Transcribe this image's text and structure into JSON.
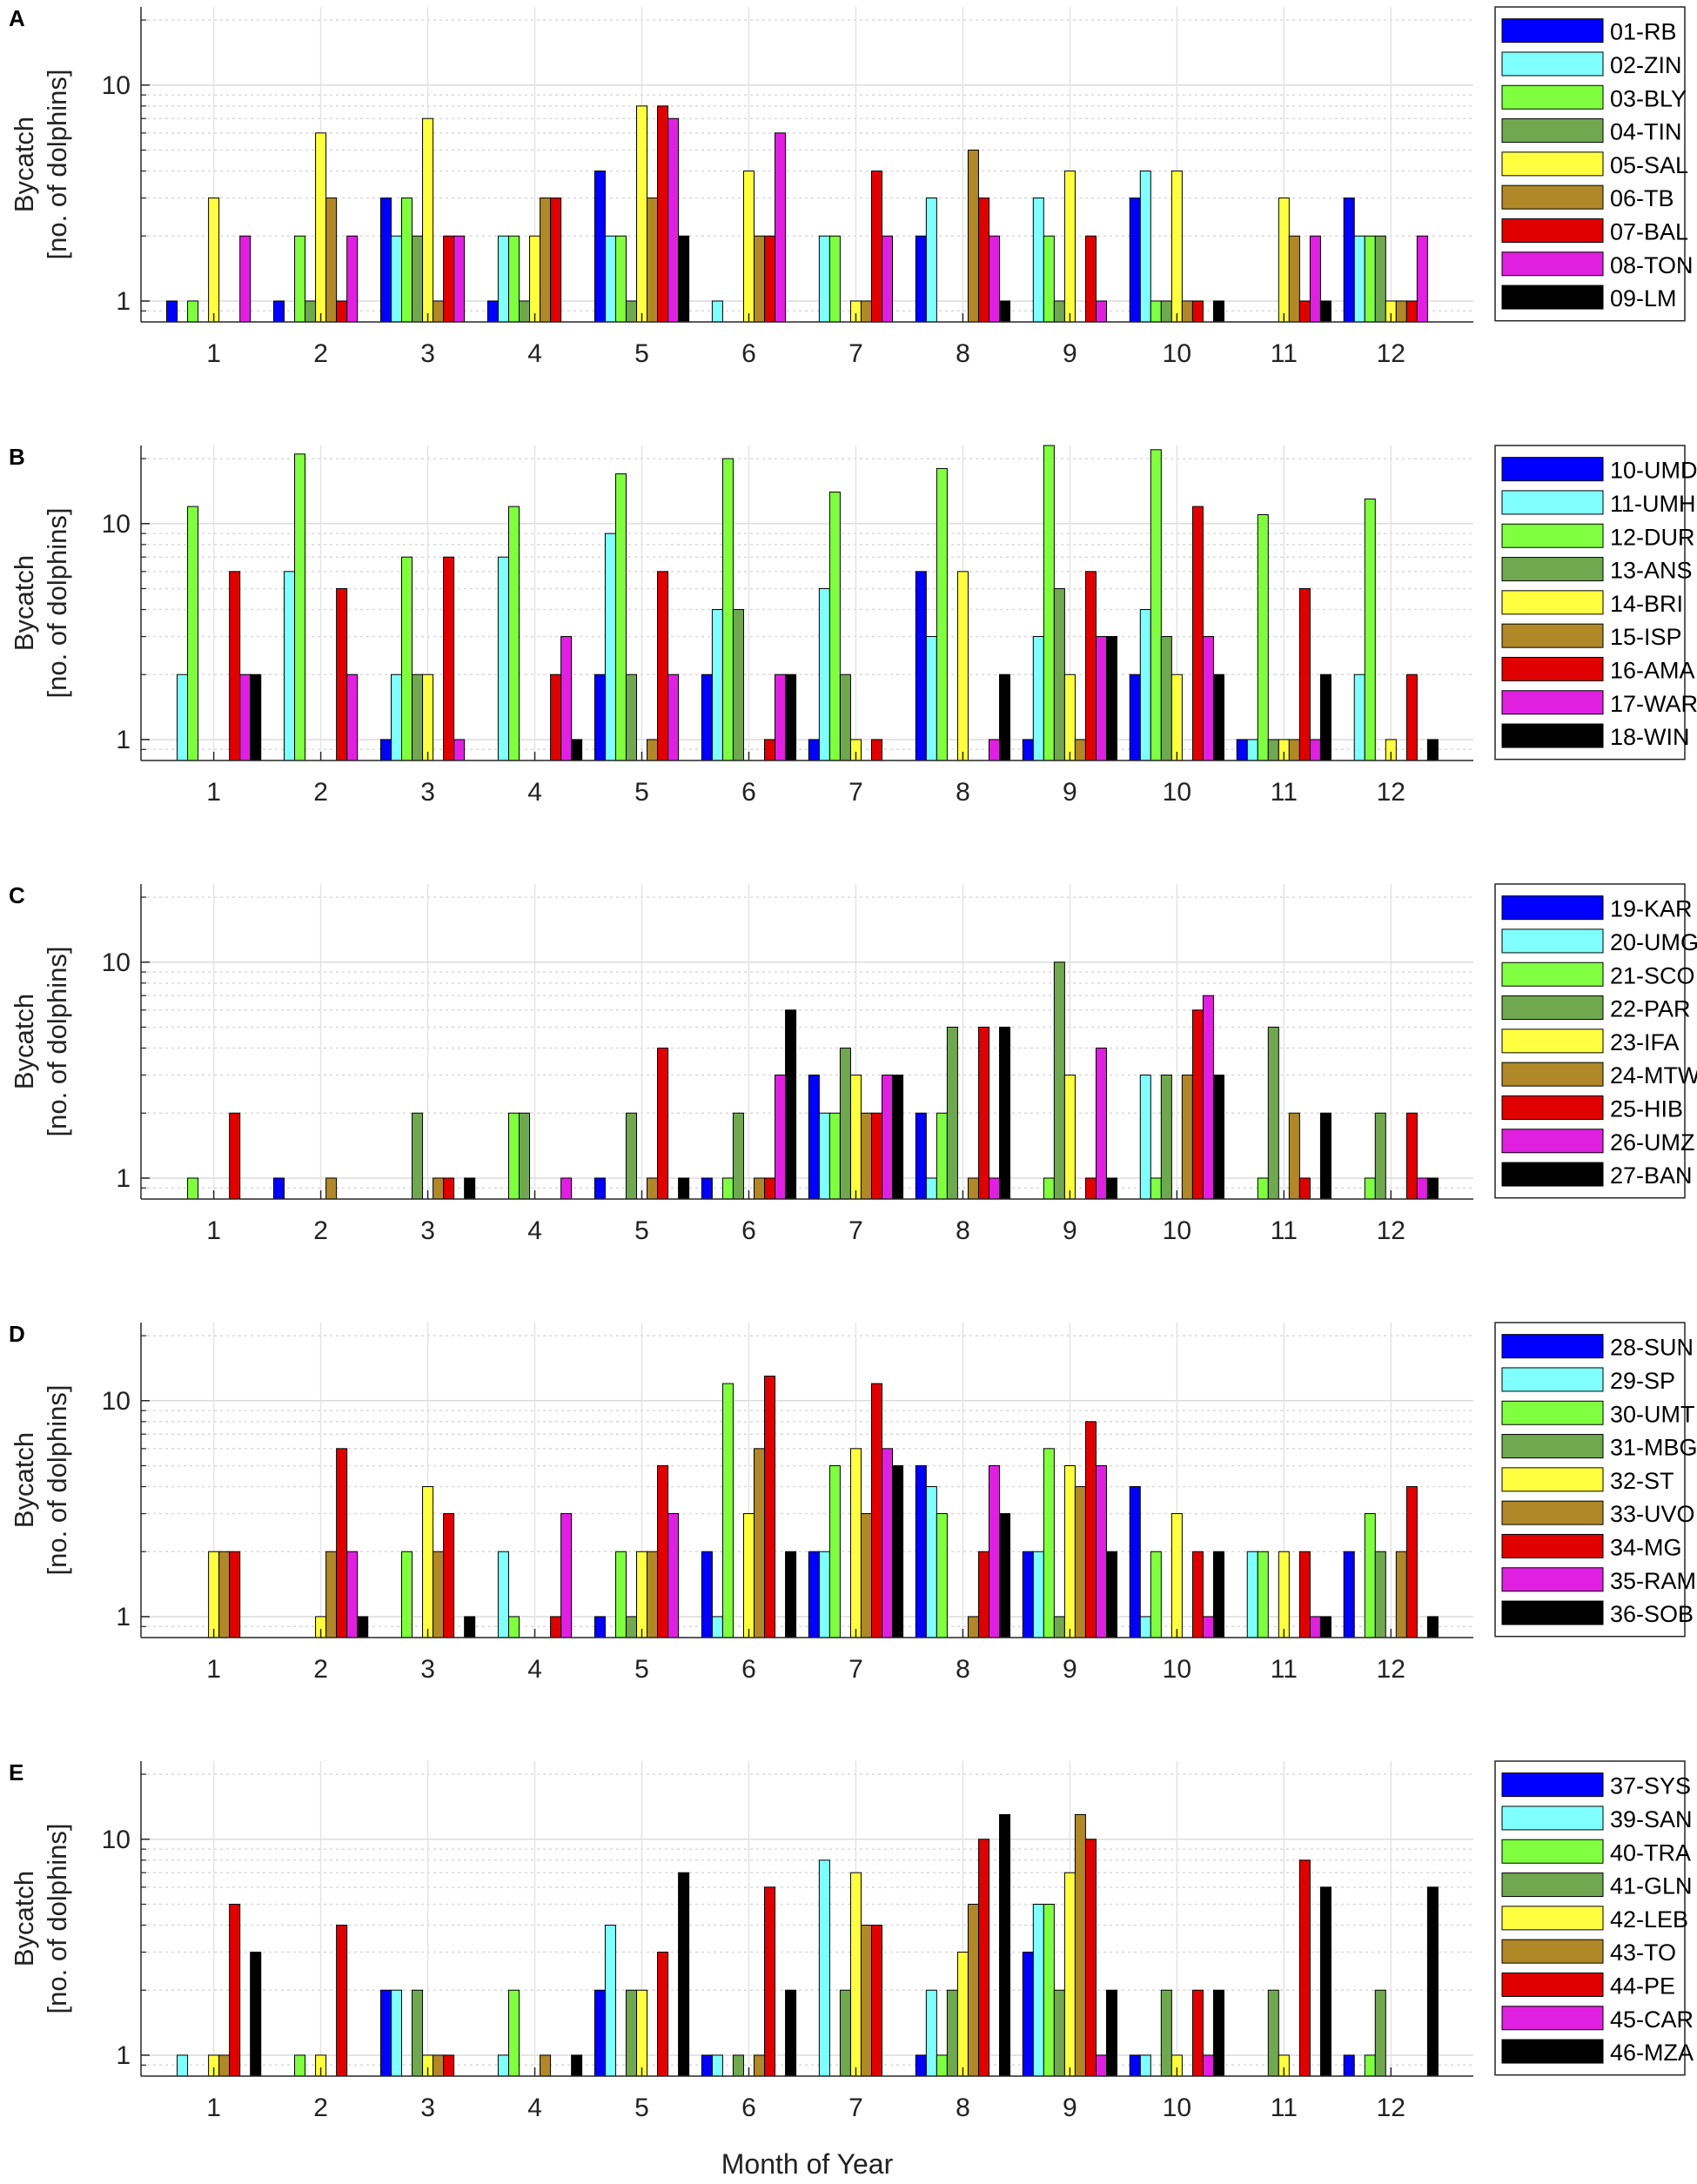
{
  "chart_data": [
    {
      "type": "bar",
      "panel": "A",
      "title": "",
      "xlabel": "",
      "ylabel": [
        "Bycatch",
        "[no. of dolphins]"
      ],
      "yscale": "log",
      "ylim": [
        0.8,
        23
      ],
      "yticks": [
        {
          "value": 1,
          "label": "1"
        },
        {
          "value": 10,
          "label": "10"
        }
      ],
      "categories": [
        "1",
        "2",
        "3",
        "4",
        "5",
        "6",
        "7",
        "8",
        "9",
        "10",
        "11",
        "12"
      ],
      "legend_position": "right",
      "series": [
        {
          "name": "01-RB",
          "color": "#0000ff",
          "values": [
            1,
            1,
            3,
            1,
            4,
            0,
            0,
            2,
            0,
            3,
            0,
            3
          ]
        },
        {
          "name": "02-ZIN",
          "color": "#80ffff",
          "values": [
            0,
            0,
            2,
            2,
            2,
            1,
            2,
            3,
            3,
            4,
            0,
            2
          ]
        },
        {
          "name": "03-BLY",
          "color": "#80ff40",
          "values": [
            1,
            2,
            3,
            2,
            2,
            0,
            2,
            0,
            2,
            1,
            0,
            2
          ]
        },
        {
          "name": "04-TIN",
          "color": "#70a850",
          "values": [
            0,
            1,
            2,
            1,
            1,
            0,
            0,
            0,
            1,
            1,
            0,
            2
          ]
        },
        {
          "name": "05-SAL",
          "color": "#ffff40",
          "values": [
            3,
            6,
            7,
            2,
            8,
            4,
            1,
            0,
            4,
            4,
            3,
            1
          ]
        },
        {
          "name": "06-TB",
          "color": "#b08828",
          "values": [
            0,
            3,
            1,
            3,
            3,
            2,
            1,
            5,
            0,
            1,
            2,
            1
          ]
        },
        {
          "name": "07-BAL",
          "color": "#e00000",
          "values": [
            0,
            1,
            2,
            3,
            8,
            2,
            4,
            3,
            2,
            1,
            1,
            1
          ]
        },
        {
          "name": "08-TON",
          "color": "#e020e0",
          "values": [
            2,
            2,
            2,
            0,
            7,
            6,
            2,
            2,
            1,
            0,
            2,
            2
          ]
        },
        {
          "name": "09-LM",
          "color": "#000000",
          "values": [
            0,
            0,
            0,
            0,
            2,
            0,
            0,
            1,
            0,
            1,
            1,
            0
          ]
        }
      ]
    },
    {
      "type": "bar",
      "panel": "B",
      "title": "",
      "xlabel": "",
      "ylabel": [
        "Bycatch",
        "[no. of dolphins]"
      ],
      "yscale": "log",
      "ylim": [
        0.8,
        23
      ],
      "yticks": [
        {
          "value": 1,
          "label": "1"
        },
        {
          "value": 10,
          "label": "10"
        }
      ],
      "categories": [
        "1",
        "2",
        "3",
        "4",
        "5",
        "6",
        "7",
        "8",
        "9",
        "10",
        "11",
        "12"
      ],
      "legend_position": "right",
      "series": [
        {
          "name": "10-UMD",
          "color": "#0000ff",
          "values": [
            0,
            0,
            1,
            0,
            2,
            2,
            1,
            6,
            1,
            2,
            1,
            0
          ]
        },
        {
          "name": "11-UMH",
          "color": "#80ffff",
          "values": [
            2,
            6,
            2,
            7,
            9,
            4,
            5,
            3,
            3,
            4,
            1,
            2
          ]
        },
        {
          "name": "12-DUR",
          "color": "#80ff40",
          "values": [
            12,
            21,
            7,
            12,
            17,
            20,
            14,
            18,
            23,
            22,
            11,
            13
          ]
        },
        {
          "name": "13-ANS",
          "color": "#70a850",
          "values": [
            0,
            0,
            2,
            0,
            2,
            4,
            2,
            0,
            5,
            3,
            1,
            0
          ]
        },
        {
          "name": "14-BRI",
          "color": "#ffff40",
          "values": [
            0,
            0,
            2,
            0,
            0,
            0,
            1,
            6,
            2,
            2,
            1,
            1
          ]
        },
        {
          "name": "15-ISP",
          "color": "#b08828",
          "values": [
            0,
            0,
            0,
            0,
            1,
            0,
            0,
            0,
            1,
            0,
            1,
            0
          ]
        },
        {
          "name": "16-AMA",
          "color": "#e00000",
          "values": [
            6,
            5,
            7,
            2,
            6,
            1,
            1,
            0,
            6,
            12,
            5,
            2
          ]
        },
        {
          "name": "17-WAR",
          "color": "#e020e0",
          "values": [
            2,
            2,
            1,
            3,
            2,
            2,
            0,
            1,
            3,
            3,
            1,
            0
          ]
        },
        {
          "name": "18-WIN",
          "color": "#000000",
          "values": [
            2,
            0,
            0,
            1,
            0,
            2,
            0,
            2,
            3,
            2,
            2,
            1
          ]
        }
      ]
    },
    {
      "type": "bar",
      "panel": "C",
      "title": "",
      "xlabel": "",
      "ylabel": [
        "Bycatch",
        "[no. of dolphins]"
      ],
      "yscale": "log",
      "ylim": [
        0.8,
        23
      ],
      "yticks": [
        {
          "value": 1,
          "label": "1"
        },
        {
          "value": 10,
          "label": "10"
        }
      ],
      "categories": [
        "1",
        "2",
        "3",
        "4",
        "5",
        "6",
        "7",
        "8",
        "9",
        "10",
        "11",
        "12"
      ],
      "legend_position": "right",
      "series": [
        {
          "name": "19-KAR",
          "color": "#0000ff",
          "values": [
            0,
            1,
            0,
            0,
            1,
            1,
            3,
            2,
            0,
            0,
            0,
            0
          ]
        },
        {
          "name": "20-UMG",
          "color": "#80ffff",
          "values": [
            0,
            0,
            0,
            0,
            0,
            0,
            2,
            1,
            0,
            3,
            0,
            0
          ]
        },
        {
          "name": "21-SCO",
          "color": "#80ff40",
          "values": [
            1,
            0,
            0,
            2,
            0,
            1,
            2,
            2,
            1,
            1,
            1,
            1
          ]
        },
        {
          "name": "22-PAR",
          "color": "#70a850",
          "values": [
            0,
            0,
            2,
            2,
            2,
            2,
            4,
            5,
            10,
            3,
            5,
            2
          ]
        },
        {
          "name": "23-IFA",
          "color": "#ffff40",
          "values": [
            0,
            0,
            0,
            0,
            0,
            0,
            3,
            0,
            3,
            0,
            0,
            0
          ]
        },
        {
          "name": "24-MTW",
          "color": "#b08828",
          "values": [
            0,
            1,
            1,
            0,
            1,
            1,
            2,
            1,
            0,
            3,
            2,
            0
          ]
        },
        {
          "name": "25-HIB",
          "color": "#e00000",
          "values": [
            2,
            0,
            1,
            0,
            4,
            1,
            2,
            5,
            1,
            6,
            1,
            2
          ]
        },
        {
          "name": "26-UMZ",
          "color": "#e020e0",
          "values": [
            0,
            0,
            0,
            1,
            0,
            3,
            3,
            1,
            4,
            7,
            0,
            1
          ]
        },
        {
          "name": "27-BAN",
          "color": "#000000",
          "values": [
            0,
            0,
            1,
            0,
            1,
            6,
            3,
            5,
            1,
            3,
            2,
            1
          ]
        }
      ]
    },
    {
      "type": "bar",
      "panel": "D",
      "title": "",
      "xlabel": "",
      "ylabel": [
        "Bycatch",
        "[no. of dolphins]"
      ],
      "yscale": "log",
      "ylim": [
        0.8,
        23
      ],
      "yticks": [
        {
          "value": 1,
          "label": "1"
        },
        {
          "value": 10,
          "label": "10"
        }
      ],
      "categories": [
        "1",
        "2",
        "3",
        "4",
        "5",
        "6",
        "7",
        "8",
        "9",
        "10",
        "11",
        "12"
      ],
      "legend_position": "right",
      "series": [
        {
          "name": "28-SUN",
          "color": "#0000ff",
          "values": [
            0,
            0,
            0,
            0,
            1,
            2,
            2,
            5,
            2,
            4,
            0,
            2
          ]
        },
        {
          "name": "29-SP",
          "color": "#80ffff",
          "values": [
            0,
            0,
            0,
            2,
            0,
            1,
            2,
            4,
            2,
            1,
            2,
            0
          ]
        },
        {
          "name": "30-UMT",
          "color": "#80ff40",
          "values": [
            0,
            0,
            2,
            1,
            2,
            12,
            5,
            3,
            6,
            2,
            2,
            3
          ]
        },
        {
          "name": "31-MBG",
          "color": "#70a850",
          "values": [
            0,
            0,
            0,
            0,
            1,
            0,
            0,
            0,
            1,
            0,
            0,
            2
          ]
        },
        {
          "name": "32-ST",
          "color": "#ffff40",
          "values": [
            2,
            1,
            4,
            0,
            2,
            3,
            6,
            0,
            5,
            3,
            2,
            0
          ]
        },
        {
          "name": "33-UVO",
          "color": "#b08828",
          "values": [
            2,
            2,
            2,
            0,
            2,
            6,
            3,
            1,
            4,
            0,
            0,
            2
          ]
        },
        {
          "name": "34-MG",
          "color": "#e00000",
          "values": [
            2,
            6,
            3,
            1,
            5,
            13,
            12,
            2,
            8,
            2,
            2,
            4
          ]
        },
        {
          "name": "35-RAM",
          "color": "#e020e0",
          "values": [
            0,
            2,
            0,
            3,
            3,
            0,
            6,
            5,
            5,
            1,
            1,
            0
          ]
        },
        {
          "name": "36-SOB",
          "color": "#000000",
          "values": [
            0,
            1,
            1,
            0,
            0,
            2,
            5,
            3,
            2,
            2,
            1,
            1
          ]
        }
      ]
    },
    {
      "type": "bar",
      "panel": "E",
      "title": "",
      "xlabel": "Month of Year",
      "ylabel": [
        "Bycatch",
        "[no. of dolphins]"
      ],
      "yscale": "log",
      "ylim": [
        0.8,
        23
      ],
      "yticks": [
        {
          "value": 1,
          "label": "1"
        },
        {
          "value": 10,
          "label": "10"
        }
      ],
      "categories": [
        "1",
        "2",
        "3",
        "4",
        "5",
        "6",
        "7",
        "8",
        "9",
        "10",
        "11",
        "12"
      ],
      "legend_position": "right",
      "series": [
        {
          "name": "37-SYS",
          "color": "#0000ff",
          "values": [
            0,
            0,
            2,
            0,
            2,
            1,
            0,
            1,
            3,
            1,
            0,
            1
          ]
        },
        {
          "name": "39-SAN",
          "color": "#80ffff",
          "values": [
            1,
            0,
            2,
            1,
            4,
            1,
            8,
            2,
            5,
            1,
            0,
            0
          ]
        },
        {
          "name": "40-TRA",
          "color": "#80ff40",
          "values": [
            0,
            1,
            0,
            2,
            0,
            0,
            0,
            1,
            5,
            0,
            0,
            1
          ]
        },
        {
          "name": "41-GLN",
          "color": "#70a850",
          "values": [
            0,
            0,
            2,
            0,
            2,
            1,
            2,
            2,
            2,
            2,
            2,
            2
          ]
        },
        {
          "name": "42-LEB",
          "color": "#ffff40",
          "values": [
            1,
            1,
            1,
            0,
            2,
            0,
            7,
            3,
            7,
            1,
            1,
            0
          ]
        },
        {
          "name": "43-TO",
          "color": "#b08828",
          "values": [
            1,
            0,
            1,
            1,
            0,
            1,
            4,
            5,
            13,
            0,
            0,
            0
          ]
        },
        {
          "name": "44-PE",
          "color": "#e00000",
          "values": [
            5,
            4,
            1,
            0,
            3,
            6,
            4,
            10,
            10,
            2,
            8,
            0
          ]
        },
        {
          "name": "45-CAR",
          "color": "#e020e0",
          "values": [
            0,
            0,
            0,
            0,
            0,
            0,
            0,
            0,
            1,
            1,
            0,
            0
          ]
        },
        {
          "name": "46-MZA",
          "color": "#000000",
          "values": [
            3,
            0,
            0,
            1,
            7,
            2,
            0,
            13,
            2,
            2,
            6,
            6
          ]
        }
      ]
    }
  ]
}
